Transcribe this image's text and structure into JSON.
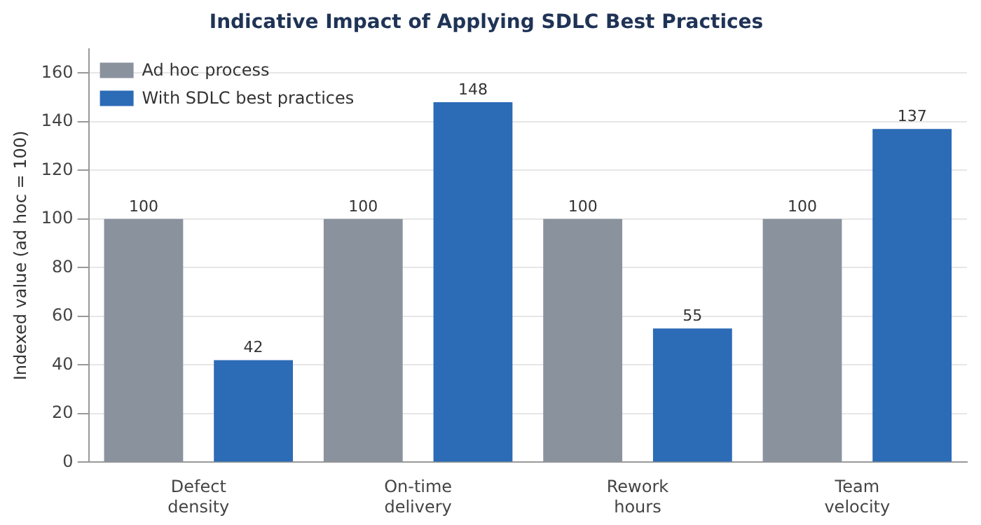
{
  "chart_data": {
    "type": "bar",
    "title": "Indicative Impact of Applying SDLC Best Practices",
    "ylabel": "Indexed value (ad hoc = 100)",
    "categories": [
      "Defect density",
      "On-time delivery",
      "Rework hours",
      "Team velocity"
    ],
    "series": [
      {
        "name": "Ad hoc process",
        "color": "#8a929e",
        "values": [
          100,
          100,
          100,
          100
        ]
      },
      {
        "name": "With SDLC best practices",
        "color": "#2c6bb5",
        "values": [
          42,
          148,
          55,
          137
        ]
      }
    ],
    "ylim": [
      0,
      170
    ],
    "yticks": [
      0,
      20,
      40,
      60,
      80,
      100,
      120,
      140,
      160
    ],
    "grid": "y",
    "legend": "top left",
    "data_labels": true
  }
}
